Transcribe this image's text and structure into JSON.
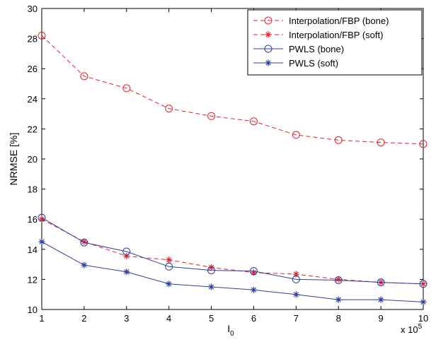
{
  "chart_data": {
    "type": "line",
    "x": [
      1,
      2,
      3,
      4,
      5,
      6,
      7,
      8,
      9,
      10
    ],
    "xlabel": "I",
    "xlabel_subscript": "0",
    "x_multiplier_base": "x 10",
    "x_multiplier_exp": "5",
    "ylabel": "NRMSE [%]",
    "xlim": [
      1,
      10
    ],
    "ylim": [
      10,
      30
    ],
    "xticks": [
      1,
      2,
      3,
      4,
      5,
      6,
      7,
      8,
      9,
      10
    ],
    "yticks": [
      10,
      12,
      14,
      16,
      18,
      20,
      22,
      24,
      26,
      28,
      30
    ],
    "grid": false,
    "legend_position": "top-right",
    "series": [
      {
        "name": "Interpolation/FBP (bone)",
        "color": "#e8202a",
        "line": "dashed",
        "marker": "circle",
        "values": [
          28.2,
          25.5,
          24.7,
          23.35,
          22.85,
          22.5,
          21.6,
          21.25,
          21.1,
          21.0
        ]
      },
      {
        "name": "Interpolation/FBP (soft)",
        "color": "#e8202a",
        "line": "dashed",
        "marker": "star",
        "values": [
          16.0,
          14.5,
          13.55,
          13.3,
          12.8,
          12.45,
          12.35,
          12.0,
          11.8,
          11.7
        ]
      },
      {
        "name": "PWLS (bone)",
        "color": "#2b3f9e",
        "line": "solid",
        "marker": "circle",
        "values": [
          16.1,
          14.45,
          13.85,
          12.85,
          12.6,
          12.55,
          12.0,
          11.95,
          11.8,
          11.7
        ]
      },
      {
        "name": "PWLS (soft)",
        "color": "#2b3f9e",
        "line": "solid",
        "marker": "star",
        "values": [
          14.5,
          12.95,
          12.5,
          11.7,
          11.5,
          11.3,
          11.0,
          10.65,
          10.65,
          10.5
        ]
      }
    ]
  }
}
